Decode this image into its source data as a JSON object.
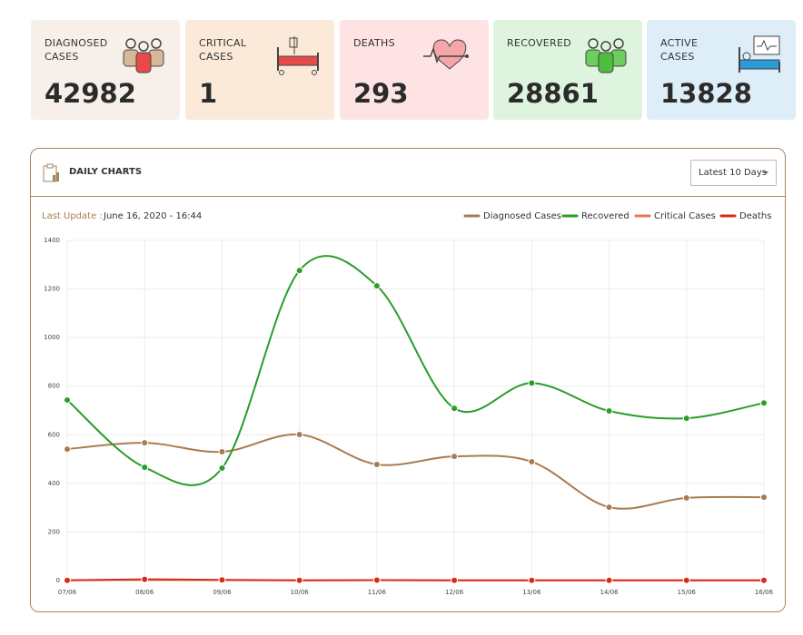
{
  "cards": [
    {
      "label": "DIAGNOSED CASES",
      "value": 42982
    },
    {
      "label": "CRITICAL CASES",
      "value": 1
    },
    {
      "label": "DEATHS",
      "value": 293
    },
    {
      "label": "RECOVERED",
      "value": 28861
    },
    {
      "label": "ACTIVE CASES",
      "value": 13828
    }
  ],
  "panel": {
    "title": "DAILY CHARTS",
    "dropdown": "Latest 10 Days",
    "last_update_label": "Last Update :",
    "last_update": "June 16, 2020 - 16:44"
  },
  "chart_data": {
    "type": "line",
    "categories": [
      "07/06",
      "08/06",
      "09/06",
      "10/06",
      "11/06",
      "12/06",
      "13/06",
      "14/06",
      "15/06",
      "16/06"
    ],
    "series": [
      {
        "name": "Diagnosed Cases",
        "color": "#a97c50",
        "values": [
          541,
          567,
          530,
          601,
          478,
          511,
          489,
          302,
          340,
          343
        ]
      },
      {
        "name": "Recovered",
        "color": "#2a9d2a",
        "values": [
          743,
          466,
          463,
          1276,
          1213,
          709,
          813,
          698,
          668,
          731
        ]
      },
      {
        "name": "Critical Cases",
        "color": "#e8784a",
        "values": [
          2,
          3,
          2,
          1,
          2,
          1,
          1,
          1,
          1,
          1
        ]
      },
      {
        "name": "Deaths",
        "color": "#d62c1a",
        "values": [
          1,
          5,
          3,
          1,
          2,
          1,
          1,
          1,
          1,
          1
        ]
      }
    ],
    "ylim": [
      0,
      1400
    ],
    "yticks": [
      0,
      200,
      400,
      600,
      800,
      1000,
      1200,
      1400
    ],
    "grid": true
  }
}
